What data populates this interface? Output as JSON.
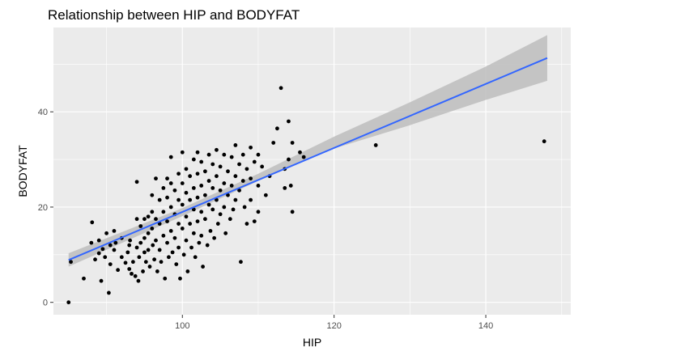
{
  "chart_data": {
    "type": "scatter",
    "title": "Relationship between HIP and BODYFAT",
    "xlabel": "HIP",
    "ylabel": "BODYFAT",
    "xlim": [
      83.0,
      151.2
    ],
    "ylim": [
      -2.6,
      57.7
    ],
    "x_ticks": [
      100,
      120,
      140
    ],
    "x_tick_labels": [
      "100",
      "120",
      "140"
    ],
    "y_ticks": [
      0,
      20,
      40
    ],
    "y_tick_labels": [
      "0",
      "20",
      "40"
    ],
    "grid": true,
    "panel_background": "#ebebeb",
    "grid_color": "#ffffff",
    "point_color": "#000000",
    "smooth": {
      "method": "linear",
      "color": "#3366ff",
      "band_color": "#bdbdbd",
      "fit": [
        [
          85.0,
          8.9
        ],
        [
          148.1,
          51.3
        ]
      ],
      "band_upper": [
        [
          85.0,
          10.3
        ],
        [
          100.0,
          19.8
        ],
        [
          110.0,
          27.0
        ],
        [
          120.0,
          34.8
        ],
        [
          130.0,
          42.0
        ],
        [
          140.0,
          49.5
        ],
        [
          148.1,
          56.1
        ]
      ],
      "band_lower": [
        [
          148.1,
          46.5
        ],
        [
          140.0,
          42.5
        ],
        [
          130.0,
          37.2
        ],
        [
          120.0,
          32.3
        ],
        [
          110.0,
          25.5
        ],
        [
          100.0,
          18.1
        ],
        [
          85.0,
          7.5
        ]
      ]
    },
    "points": [
      [
        85.0,
        0.0
      ],
      [
        85.3,
        8.5
      ],
      [
        87.0,
        5.0
      ],
      [
        88.0,
        12.5
      ],
      [
        88.1,
        16.8
      ],
      [
        88.5,
        9.0
      ],
      [
        89.0,
        13.0
      ],
      [
        89.0,
        10.3
      ],
      [
        89.3,
        4.5
      ],
      [
        89.5,
        11.2
      ],
      [
        89.8,
        9.5
      ],
      [
        90.0,
        14.5
      ],
      [
        90.3,
        2.0
      ],
      [
        90.5,
        8.0
      ],
      [
        90.5,
        12.0
      ],
      [
        91.0,
        11.0
      ],
      [
        91.0,
        15.0
      ],
      [
        91.2,
        12.5
      ],
      [
        91.5,
        6.8
      ],
      [
        92.0,
        13.5
      ],
      [
        92.0,
        9.5
      ],
      [
        92.5,
        8.3
      ],
      [
        92.8,
        10.5
      ],
      [
        93.0,
        7.0
      ],
      [
        93.0,
        12.0
      ],
      [
        93.1,
        13.0
      ],
      [
        93.3,
        6.0
      ],
      [
        93.5,
        8.5
      ],
      [
        93.8,
        5.5
      ],
      [
        94.0,
        17.5
      ],
      [
        94.0,
        25.3
      ],
      [
        94.0,
        11.5
      ],
      [
        94.2,
        4.5
      ],
      [
        94.3,
        9.5
      ],
      [
        94.5,
        16.0
      ],
      [
        94.5,
        12.5
      ],
      [
        94.8,
        6.5
      ],
      [
        95.0,
        17.5
      ],
      [
        95.0,
        13.5
      ],
      [
        95.0,
        10.5
      ],
      [
        95.2,
        8.5
      ],
      [
        95.5,
        18.0
      ],
      [
        95.5,
        14.5
      ],
      [
        95.5,
        11.0
      ],
      [
        95.7,
        7.5
      ],
      [
        96.0,
        22.5
      ],
      [
        96.0,
        19.0
      ],
      [
        96.0,
        15.5
      ],
      [
        96.1,
        12.0
      ],
      [
        96.3,
        9.0
      ],
      [
        96.5,
        26.0
      ],
      [
        96.5,
        17.5
      ],
      [
        96.5,
        13.0
      ],
      [
        96.7,
        6.5
      ],
      [
        97.0,
        21.5
      ],
      [
        97.0,
        16.5
      ],
      [
        97.0,
        11.0
      ],
      [
        97.2,
        8.5
      ],
      [
        97.5,
        24.0
      ],
      [
        97.5,
        19.0
      ],
      [
        97.5,
        14.0
      ],
      [
        97.7,
        5.0
      ],
      [
        98.0,
        26.0
      ],
      [
        98.0,
        22.0
      ],
      [
        98.0,
        17.0
      ],
      [
        98.0,
        12.5
      ],
      [
        98.2,
        9.5
      ],
      [
        98.5,
        30.5
      ],
      [
        98.5,
        25.0
      ],
      [
        98.5,
        20.0
      ],
      [
        98.5,
        15.0
      ],
      [
        98.7,
        10.5
      ],
      [
        99.0,
        23.5
      ],
      [
        99.0,
        18.5
      ],
      [
        99.0,
        13.5
      ],
      [
        99.2,
        8.0
      ],
      [
        99.5,
        27.0
      ],
      [
        99.5,
        21.5
      ],
      [
        99.5,
        16.5
      ],
      [
        99.5,
        11.5
      ],
      [
        99.7,
        5.0
      ],
      [
        100.0,
        31.5
      ],
      [
        100.0,
        25.0
      ],
      [
        100.0,
        20.5
      ],
      [
        100.0,
        15.5
      ],
      [
        100.2,
        10.0
      ],
      [
        100.5,
        28.0
      ],
      [
        100.5,
        23.0
      ],
      [
        100.5,
        18.0
      ],
      [
        100.5,
        13.0
      ],
      [
        100.7,
        6.5
      ],
      [
        101.0,
        26.5
      ],
      [
        101.0,
        21.5
      ],
      [
        101.0,
        16.5
      ],
      [
        101.2,
        11.5
      ],
      [
        101.5,
        30.0
      ],
      [
        101.5,
        24.0
      ],
      [
        101.5,
        19.5
      ],
      [
        101.5,
        14.5
      ],
      [
        101.7,
        9.5
      ],
      [
        102.0,
        31.5
      ],
      [
        102.0,
        27.0
      ],
      [
        102.0,
        22.0
      ],
      [
        102.0,
        17.0
      ],
      [
        102.2,
        12.5
      ],
      [
        102.5,
        29.5
      ],
      [
        102.5,
        24.5
      ],
      [
        102.5,
        19.0
      ],
      [
        102.5,
        14.0
      ],
      [
        102.7,
        7.5
      ],
      [
        103.0,
        27.5
      ],
      [
        103.0,
        22.5
      ],
      [
        103.0,
        17.5
      ],
      [
        103.3,
        12.0
      ],
      [
        103.5,
        31.0
      ],
      [
        103.5,
        25.5
      ],
      [
        103.5,
        20.5
      ],
      [
        103.7,
        15.0
      ],
      [
        104.0,
        29.0
      ],
      [
        104.0,
        24.0
      ],
      [
        104.0,
        19.5
      ],
      [
        104.2,
        13.5
      ],
      [
        104.5,
        32.0
      ],
      [
        104.5,
        26.5
      ],
      [
        104.5,
        21.5
      ],
      [
        104.7,
        16.5
      ],
      [
        105.0,
        28.5
      ],
      [
        105.0,
        23.5
      ],
      [
        105.0,
        18.5
      ],
      [
        105.5,
        31.0
      ],
      [
        105.5,
        25.0
      ],
      [
        105.5,
        20.0
      ],
      [
        105.7,
        14.5
      ],
      [
        106.0,
        27.5
      ],
      [
        106.0,
        22.5
      ],
      [
        106.3,
        17.5
      ],
      [
        106.5,
        30.5
      ],
      [
        106.5,
        24.5
      ],
      [
        106.7,
        19.5
      ],
      [
        107.0,
        33.0
      ],
      [
        107.0,
        26.5
      ],
      [
        107.0,
        21.5
      ],
      [
        107.5,
        29.0
      ],
      [
        107.5,
        23.5
      ],
      [
        107.7,
        8.5
      ],
      [
        108.0,
        31.0
      ],
      [
        108.0,
        25.5
      ],
      [
        108.2,
        20.0
      ],
      [
        108.5,
        28.0
      ],
      [
        108.5,
        16.5
      ],
      [
        109.0,
        32.5
      ],
      [
        109.0,
        26.0
      ],
      [
        109.0,
        21.5
      ],
      [
        109.5,
        29.5
      ],
      [
        109.5,
        17.0
      ],
      [
        110.0,
        31.0
      ],
      [
        110.0,
        24.5
      ],
      [
        110.0,
        19.0
      ],
      [
        110.5,
        28.5
      ],
      [
        111.0,
        22.5
      ],
      [
        111.5,
        26.5
      ],
      [
        112.0,
        33.5
      ],
      [
        112.5,
        36.5
      ],
      [
        113.0,
        45.0
      ],
      [
        113.5,
        28.0
      ],
      [
        113.5,
        24.0
      ],
      [
        114.0,
        38.0
      ],
      [
        114.0,
        30.0
      ],
      [
        114.3,
        24.5
      ],
      [
        114.5,
        33.5
      ],
      [
        114.5,
        19.0
      ],
      [
        115.5,
        31.5
      ],
      [
        116.0,
        30.5
      ],
      [
        125.5,
        33.0
      ],
      [
        147.7,
        33.8
      ]
    ]
  }
}
